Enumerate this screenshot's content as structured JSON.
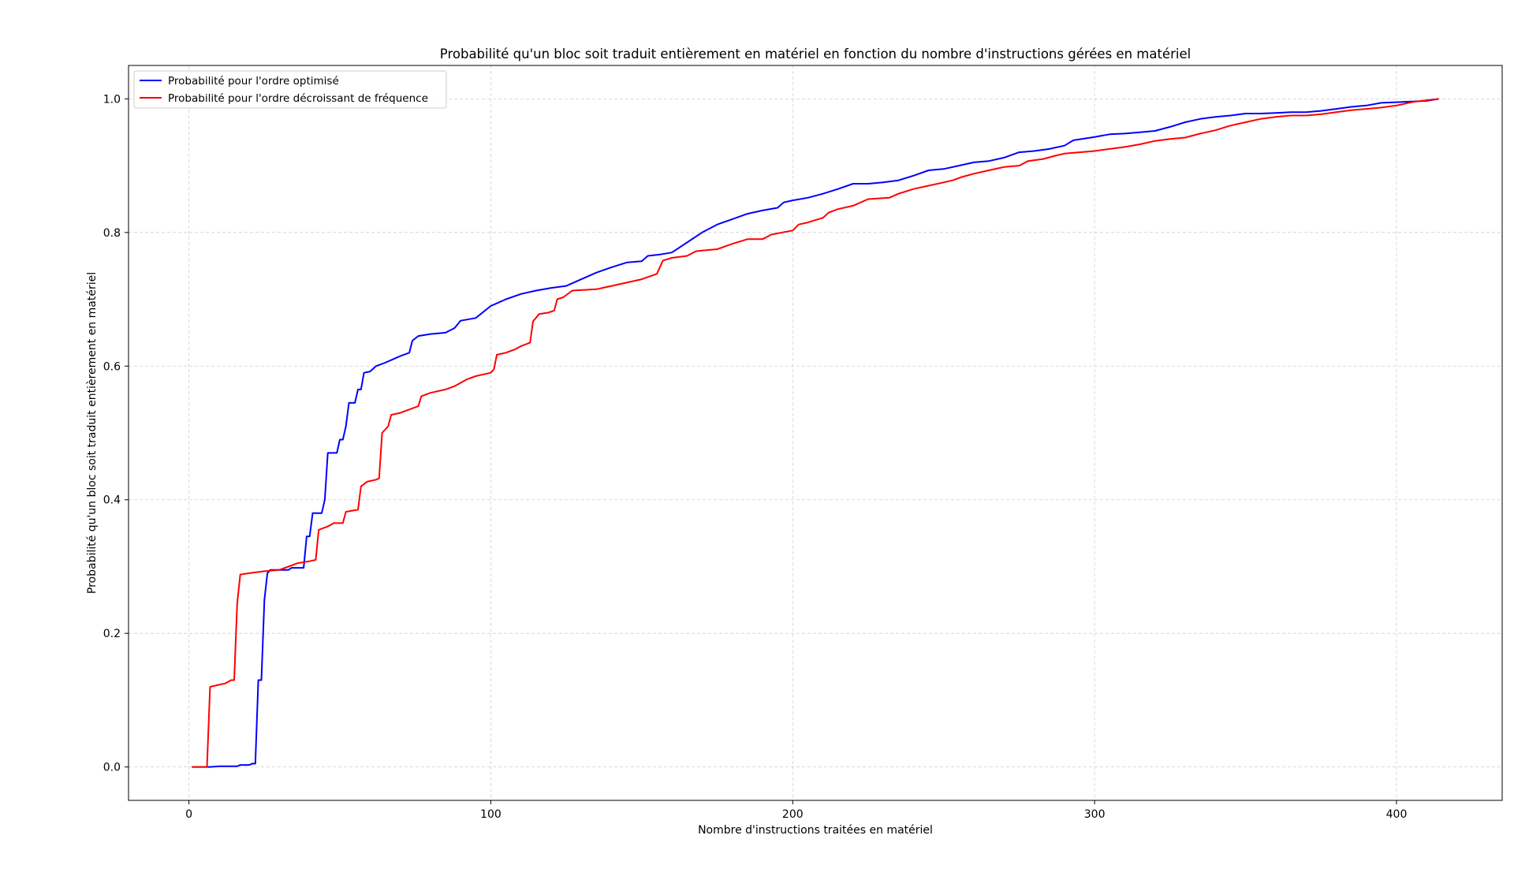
{
  "chart_data": {
    "type": "line",
    "title": "Probabilité qu'un bloc soit traduit entièrement en matériel en fonction du nombre d'instructions gérées en matériel",
    "xlabel": "Nombre d'instructions traitées en matériel",
    "ylabel": "Probabilité qu'un bloc soit traduit entièrement en matériel",
    "xlim": [
      -20,
      435
    ],
    "ylim": [
      -0.05,
      1.05
    ],
    "xticks": [
      0,
      100,
      200,
      300,
      400
    ],
    "yticks": [
      0.0,
      0.2,
      0.4,
      0.6,
      0.8,
      1.0
    ],
    "xtick_labels": [
      "0",
      "100",
      "200",
      "300",
      "400"
    ],
    "ytick_labels": [
      "0.0",
      "0.2",
      "0.4",
      "0.6",
      "0.8",
      "1.0"
    ],
    "grid": true,
    "legend_position": "top-left",
    "series": [
      {
        "name": "Probabilité pour l'ordre optimisé",
        "color": "#0000ff",
        "points": [
          [
            1,
            0
          ],
          [
            7,
            0
          ],
          [
            10,
            0.001
          ],
          [
            16,
            0.001
          ],
          [
            17,
            0.003
          ],
          [
            20,
            0.003
          ],
          [
            21,
            0.005
          ],
          [
            22,
            0.005
          ],
          [
            23,
            0.13
          ],
          [
            24,
            0.13
          ],
          [
            25,
            0.25
          ],
          [
            26,
            0.29
          ],
          [
            27,
            0.295
          ],
          [
            33,
            0.295
          ],
          [
            34,
            0.298
          ],
          [
            38,
            0.298
          ],
          [
            39,
            0.345
          ],
          [
            40,
            0.345
          ],
          [
            41,
            0.38
          ],
          [
            44,
            0.38
          ],
          [
            45,
            0.4
          ],
          [
            46,
            0.47
          ],
          [
            49,
            0.47
          ],
          [
            50,
            0.49
          ],
          [
            51,
            0.49
          ],
          [
            52,
            0.51
          ],
          [
            53,
            0.545
          ],
          [
            55,
            0.545
          ],
          [
            56,
            0.565
          ],
          [
            57,
            0.565
          ],
          [
            58,
            0.59
          ],
          [
            60,
            0.592
          ],
          [
            62,
            0.6
          ],
          [
            65,
            0.605
          ],
          [
            70,
            0.615
          ],
          [
            73,
            0.62
          ],
          [
            74,
            0.638
          ],
          [
            76,
            0.645
          ],
          [
            80,
            0.648
          ],
          [
            85,
            0.65
          ],
          [
            88,
            0.657
          ],
          [
            90,
            0.668
          ],
          [
            95,
            0.672
          ],
          [
            100,
            0.69
          ],
          [
            105,
            0.7
          ],
          [
            110,
            0.708
          ],
          [
            115,
            0.713
          ],
          [
            120,
            0.717
          ],
          [
            125,
            0.72
          ],
          [
            130,
            0.73
          ],
          [
            135,
            0.74
          ],
          [
            140,
            0.748
          ],
          [
            145,
            0.755
          ],
          [
            150,
            0.757
          ],
          [
            152,
            0.765
          ],
          [
            156,
            0.767
          ],
          [
            160,
            0.77
          ],
          [
            165,
            0.785
          ],
          [
            170,
            0.8
          ],
          [
            175,
            0.812
          ],
          [
            180,
            0.82
          ],
          [
            185,
            0.828
          ],
          [
            190,
            0.833
          ],
          [
            195,
            0.837
          ],
          [
            197,
            0.845
          ],
          [
            200,
            0.848
          ],
          [
            205,
            0.852
          ],
          [
            210,
            0.858
          ],
          [
            215,
            0.865
          ],
          [
            220,
            0.873
          ],
          [
            225,
            0.873
          ],
          [
            230,
            0.875
          ],
          [
            235,
            0.878
          ],
          [
            240,
            0.885
          ],
          [
            245,
            0.893
          ],
          [
            250,
            0.895
          ],
          [
            255,
            0.9
          ],
          [
            260,
            0.905
          ],
          [
            265,
            0.907
          ],
          [
            270,
            0.912
          ],
          [
            275,
            0.92
          ],
          [
            280,
            0.922
          ],
          [
            285,
            0.925
          ],
          [
            290,
            0.93
          ],
          [
            293,
            0.938
          ],
          [
            300,
            0.943
          ],
          [
            305,
            0.947
          ],
          [
            310,
            0.948
          ],
          [
            315,
            0.95
          ],
          [
            320,
            0.952
          ],
          [
            325,
            0.958
          ],
          [
            330,
            0.965
          ],
          [
            335,
            0.97
          ],
          [
            340,
            0.973
          ],
          [
            345,
            0.975
          ],
          [
            350,
            0.978
          ],
          [
            355,
            0.978
          ],
          [
            360,
            0.979
          ],
          [
            365,
            0.98
          ],
          [
            370,
            0.98
          ],
          [
            375,
            0.982
          ],
          [
            380,
            0.985
          ],
          [
            385,
            0.988
          ],
          [
            390,
            0.99
          ],
          [
            395,
            0.994
          ],
          [
            400,
            0.995
          ],
          [
            405,
            0.996
          ],
          [
            410,
            0.997
          ],
          [
            414,
            1.0
          ]
        ]
      },
      {
        "name": "Probabilité pour l'ordre décroissant de fréquence",
        "color": "#ff0000",
        "points": [
          [
            1,
            0
          ],
          [
            6,
            0
          ],
          [
            7,
            0.12
          ],
          [
            10,
            0.123
          ],
          [
            12,
            0.125
          ],
          [
            14,
            0.13
          ],
          [
            15,
            0.13
          ],
          [
            16,
            0.245
          ],
          [
            17,
            0.288
          ],
          [
            20,
            0.29
          ],
          [
            25,
            0.293
          ],
          [
            30,
            0.295
          ],
          [
            33,
            0.3
          ],
          [
            36,
            0.305
          ],
          [
            40,
            0.308
          ],
          [
            42,
            0.31
          ],
          [
            43,
            0.355
          ],
          [
            46,
            0.36
          ],
          [
            48,
            0.365
          ],
          [
            51,
            0.365
          ],
          [
            52,
            0.382
          ],
          [
            56,
            0.385
          ],
          [
            57,
            0.42
          ],
          [
            59,
            0.427
          ],
          [
            62,
            0.43
          ],
          [
            63,
            0.432
          ],
          [
            64,
            0.5
          ],
          [
            66,
            0.51
          ],
          [
            67,
            0.527
          ],
          [
            70,
            0.53
          ],
          [
            73,
            0.535
          ],
          [
            76,
            0.54
          ],
          [
            77,
            0.555
          ],
          [
            80,
            0.56
          ],
          [
            85,
            0.565
          ],
          [
            88,
            0.57
          ],
          [
            92,
            0.58
          ],
          [
            95,
            0.585
          ],
          [
            100,
            0.59
          ],
          [
            101,
            0.595
          ],
          [
            102,
            0.617
          ],
          [
            105,
            0.62
          ],
          [
            108,
            0.625
          ],
          [
            110,
            0.63
          ],
          [
            113,
            0.635
          ],
          [
            114,
            0.667
          ],
          [
            116,
            0.678
          ],
          [
            119,
            0.68
          ],
          [
            121,
            0.683
          ],
          [
            122,
            0.7
          ],
          [
            124,
            0.703
          ],
          [
            127,
            0.713
          ],
          [
            135,
            0.715
          ],
          [
            140,
            0.72
          ],
          [
            145,
            0.725
          ],
          [
            150,
            0.73
          ],
          [
            155,
            0.738
          ],
          [
            157,
            0.758
          ],
          [
            160,
            0.762
          ],
          [
            165,
            0.765
          ],
          [
            168,
            0.772
          ],
          [
            175,
            0.775
          ],
          [
            180,
            0.783
          ],
          [
            185,
            0.79
          ],
          [
            190,
            0.79
          ],
          [
            193,
            0.797
          ],
          [
            200,
            0.803
          ],
          [
            202,
            0.812
          ],
          [
            205,
            0.815
          ],
          [
            210,
            0.822
          ],
          [
            212,
            0.83
          ],
          [
            215,
            0.835
          ],
          [
            220,
            0.84
          ],
          [
            225,
            0.85
          ],
          [
            232,
            0.852
          ],
          [
            235,
            0.858
          ],
          [
            240,
            0.865
          ],
          [
            245,
            0.87
          ],
          [
            250,
            0.875
          ],
          [
            253,
            0.878
          ],
          [
            256,
            0.883
          ],
          [
            260,
            0.888
          ],
          [
            265,
            0.893
          ],
          [
            270,
            0.898
          ],
          [
            275,
            0.9
          ],
          [
            278,
            0.907
          ],
          [
            283,
            0.91
          ],
          [
            287,
            0.915
          ],
          [
            290,
            0.918
          ],
          [
            295,
            0.92
          ],
          [
            300,
            0.922
          ],
          [
            305,
            0.925
          ],
          [
            310,
            0.928
          ],
          [
            315,
            0.932
          ],
          [
            320,
            0.937
          ],
          [
            325,
            0.94
          ],
          [
            330,
            0.942
          ],
          [
            335,
            0.948
          ],
          [
            340,
            0.953
          ],
          [
            345,
            0.96
          ],
          [
            350,
            0.965
          ],
          [
            355,
            0.97
          ],
          [
            360,
            0.973
          ],
          [
            365,
            0.975
          ],
          [
            370,
            0.975
          ],
          [
            375,
            0.977
          ],
          [
            380,
            0.98
          ],
          [
            385,
            0.983
          ],
          [
            390,
            0.985
          ],
          [
            395,
            0.987
          ],
          [
            400,
            0.99
          ],
          [
            405,
            0.995
          ],
          [
            410,
            0.998
          ],
          [
            414,
            1.0
          ]
        ]
      }
    ]
  }
}
